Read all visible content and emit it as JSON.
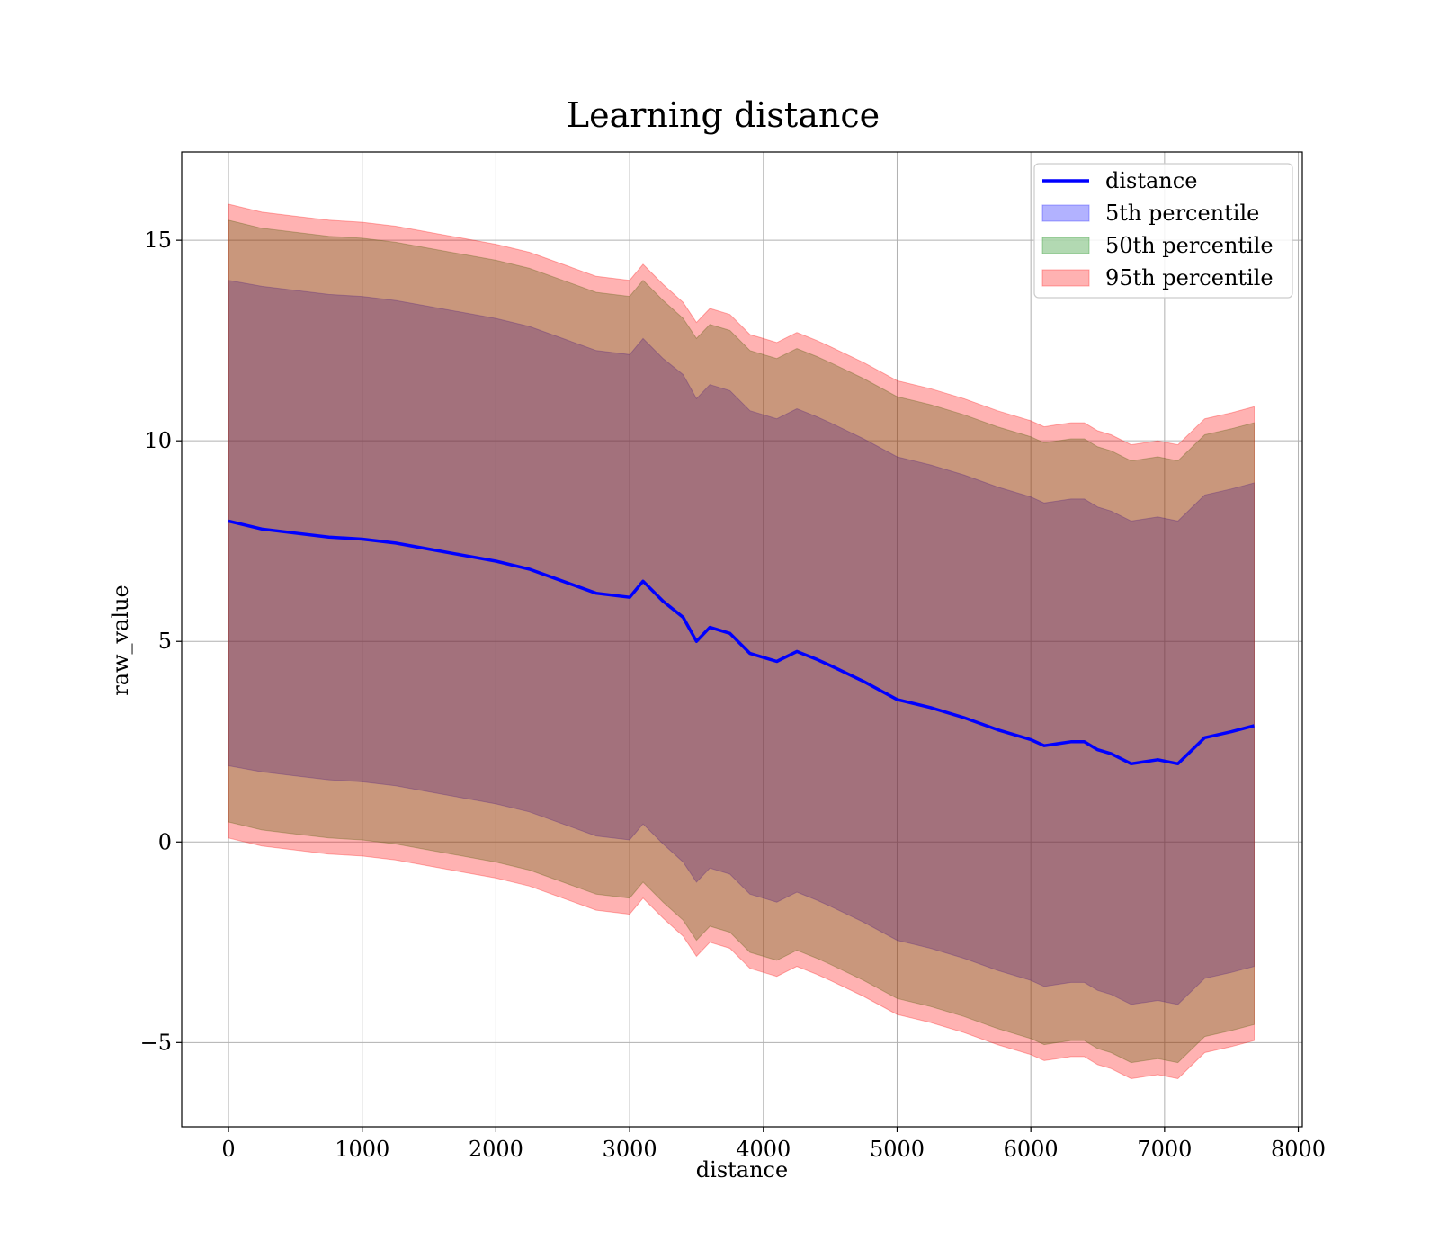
{
  "chart_data": {
    "type": "line",
    "title": "Learning distance",
    "xlabel": "distance",
    "ylabel": "raw_value",
    "xlim": [
      -350,
      8030
    ],
    "ylim": [
      -7.1,
      17.2
    ],
    "x_ticks": [
      0,
      1000,
      2000,
      3000,
      4000,
      5000,
      6000,
      7000,
      8000
    ],
    "x_tick_labels": [
      "0",
      "1000",
      "2000",
      "3000",
      "4000",
      "5000",
      "6000",
      "7000",
      "8000"
    ],
    "y_ticks": [
      -5,
      0,
      5,
      10,
      15
    ],
    "y_tick_labels": [
      "−5",
      "0",
      "5",
      "10",
      "15"
    ],
    "grid": true,
    "legend_position": "top-right",
    "x": [
      0,
      250,
      500,
      750,
      1000,
      1250,
      1500,
      1750,
      2000,
      2250,
      2500,
      2750,
      3000,
      3100,
      3250,
      3400,
      3500,
      3600,
      3750,
      3900,
      4000,
      4100,
      4250,
      4400,
      4500,
      4750,
      5000,
      5250,
      5500,
      5750,
      6000,
      6100,
      6200,
      6300,
      6400,
      6500,
      6600,
      6750,
      6950,
      7100,
      7300,
      7500,
      7670
    ],
    "series": [
      {
        "name": "distance",
        "kind": "line",
        "color": "#0000ff",
        "values": [
          8.0,
          7.8,
          7.7,
          7.6,
          7.55,
          7.45,
          7.3,
          7.15,
          7.0,
          6.8,
          6.5,
          6.2,
          6.1,
          6.5,
          6.0,
          5.6,
          5.0,
          5.35,
          5.2,
          4.7,
          4.6,
          4.5,
          4.75,
          4.55,
          4.4,
          4.0,
          3.55,
          3.35,
          3.1,
          2.8,
          2.55,
          2.4,
          2.45,
          2.5,
          2.5,
          2.3,
          2.2,
          1.95,
          2.05,
          1.95,
          2.6,
          2.75,
          2.9
        ]
      },
      {
        "name": "5th percentile",
        "kind": "band",
        "color": "#0000ff",
        "lower": [
          1.9,
          1.75,
          1.65,
          1.55,
          1.5,
          1.4,
          1.25,
          1.1,
          0.95,
          0.75,
          0.45,
          0.15,
          0.05,
          0.45,
          -0.05,
          -0.5,
          -1.0,
          -0.65,
          -0.8,
          -1.3,
          -1.4,
          -1.5,
          -1.25,
          -1.45,
          -1.6,
          -2.0,
          -2.45,
          -2.65,
          -2.9,
          -3.2,
          -3.45,
          -3.6,
          -3.55,
          -3.5,
          -3.5,
          -3.7,
          -3.8,
          -4.05,
          -3.95,
          -4.05,
          -3.4,
          -3.25,
          -3.1
        ],
        "upper": [
          14.0,
          13.85,
          13.75,
          13.65,
          13.6,
          13.5,
          13.35,
          13.2,
          13.05,
          12.85,
          12.55,
          12.25,
          12.15,
          12.55,
          12.05,
          11.65,
          11.05,
          11.4,
          11.25,
          10.75,
          10.65,
          10.55,
          10.8,
          10.6,
          10.45,
          10.05,
          9.6,
          9.4,
          9.15,
          8.85,
          8.6,
          8.45,
          8.5,
          8.55,
          8.55,
          8.35,
          8.25,
          8.0,
          8.1,
          8.0,
          8.65,
          8.8,
          8.95
        ]
      },
      {
        "name": "50th percentile",
        "kind": "band",
        "color": "#008000",
        "lower": [
          0.5,
          0.3,
          0.2,
          0.1,
          0.05,
          -0.05,
          -0.2,
          -0.35,
          -0.5,
          -0.7,
          -1.0,
          -1.3,
          -1.4,
          -1.0,
          -1.5,
          -1.95,
          -2.45,
          -2.1,
          -2.25,
          -2.75,
          -2.85,
          -2.95,
          -2.7,
          -2.9,
          -3.05,
          -3.45,
          -3.9,
          -4.1,
          -4.35,
          -4.65,
          -4.9,
          -5.05,
          -5.0,
          -4.95,
          -4.95,
          -5.15,
          -5.25,
          -5.5,
          -5.4,
          -5.5,
          -4.85,
          -4.7,
          -4.55
        ],
        "upper": [
          15.5,
          15.3,
          15.2,
          15.1,
          15.05,
          14.95,
          14.8,
          14.65,
          14.5,
          14.3,
          14.0,
          13.7,
          13.6,
          14.0,
          13.5,
          13.05,
          12.55,
          12.9,
          12.75,
          12.25,
          12.15,
          12.05,
          12.3,
          12.1,
          11.95,
          11.55,
          11.1,
          10.9,
          10.65,
          10.35,
          10.1,
          9.95,
          10.0,
          10.05,
          10.05,
          9.85,
          9.75,
          9.5,
          9.6,
          9.5,
          10.15,
          10.3,
          10.45
        ]
      },
      {
        "name": "95th percentile",
        "kind": "band",
        "color": "#ff0000",
        "lower": [
          0.1,
          -0.1,
          -0.2,
          -0.3,
          -0.35,
          -0.45,
          -0.6,
          -0.75,
          -0.9,
          -1.1,
          -1.4,
          -1.7,
          -1.8,
          -1.4,
          -1.9,
          -2.35,
          -2.85,
          -2.5,
          -2.65,
          -3.15,
          -3.25,
          -3.35,
          -3.1,
          -3.3,
          -3.45,
          -3.85,
          -4.3,
          -4.5,
          -4.75,
          -5.05,
          -5.3,
          -5.45,
          -5.4,
          -5.35,
          -5.35,
          -5.55,
          -5.65,
          -5.9,
          -5.8,
          -5.9,
          -5.25,
          -5.1,
          -4.95
        ],
        "upper": [
          15.9,
          15.7,
          15.6,
          15.5,
          15.45,
          15.35,
          15.2,
          15.05,
          14.9,
          14.7,
          14.4,
          14.1,
          14.0,
          14.4,
          13.9,
          13.45,
          12.95,
          13.3,
          13.15,
          12.65,
          12.55,
          12.45,
          12.7,
          12.5,
          12.35,
          11.95,
          11.5,
          11.3,
          11.05,
          10.75,
          10.5,
          10.35,
          10.4,
          10.45,
          10.45,
          10.25,
          10.15,
          9.9,
          10.0,
          9.9,
          10.55,
          10.7,
          10.85
        ]
      }
    ]
  }
}
